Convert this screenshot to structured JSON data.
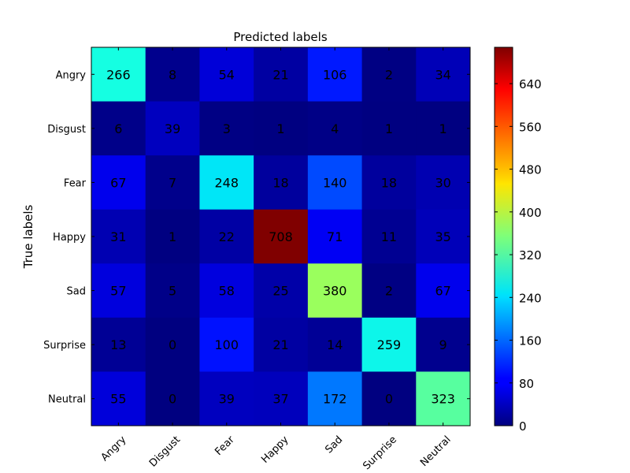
{
  "chart_data": {
    "type": "heatmap",
    "title": "Predicted labels",
    "xlabel": "",
    "ylabel": "True labels",
    "x_categories": [
      "Angry",
      "Disgust",
      "Fear",
      "Happy",
      "Sad",
      "Surprise",
      "Neutral"
    ],
    "y_categories": [
      "Angry",
      "Disgust",
      "Fear",
      "Happy",
      "Sad",
      "Surprise",
      "Neutral"
    ],
    "values": [
      [
        266,
        8,
        54,
        21,
        106,
        2,
        34
      ],
      [
        6,
        39,
        3,
        1,
        4,
        1,
        1
      ],
      [
        67,
        7,
        248,
        18,
        140,
        18,
        30
      ],
      [
        31,
        1,
        22,
        708,
        71,
        11,
        35
      ],
      [
        57,
        5,
        58,
        25,
        380,
        2,
        67
      ],
      [
        13,
        0,
        100,
        21,
        14,
        259,
        9
      ],
      [
        55,
        0,
        39,
        37,
        172,
        0,
        323
      ]
    ],
    "colormap": "jet",
    "colorbar": {
      "min": 0,
      "max": 708,
      "ticks": [
        "0",
        "80",
        "160",
        "240",
        "320",
        "400",
        "480",
        "560",
        "640"
      ]
    },
    "grid": false,
    "legend": "none"
  }
}
